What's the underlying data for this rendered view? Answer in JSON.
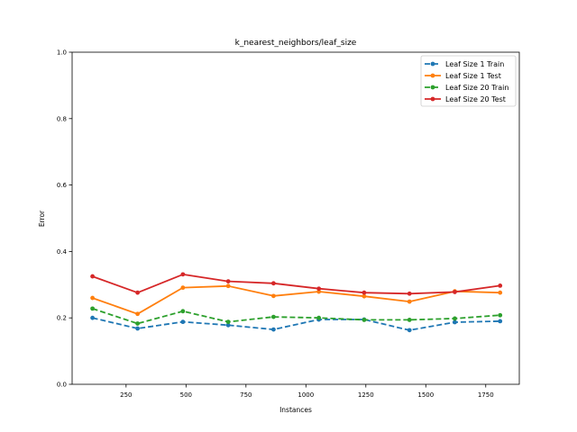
{
  "chart_data": {
    "type": "line",
    "title": "k_nearest_neighbors/leaf_size",
    "xlabel": "Instances",
    "ylabel": "Error",
    "xlim": [
      25,
      1890
    ],
    "ylim": [
      0.0,
      1.0
    ],
    "xticks": [
      250,
      500,
      750,
      1000,
      1250,
      1500,
      1750
    ],
    "yticks": [
      0.0,
      0.2,
      0.4,
      0.6,
      0.8,
      1.0
    ],
    "xtick_labels": [
      "250",
      "500",
      "750",
      "1000",
      "1250",
      "1500",
      "1750"
    ],
    "ytick_labels": [
      "0.0",
      "0.2",
      "0.4",
      "0.6",
      "0.8",
      "1.0"
    ],
    "grid": false,
    "legend_position": "upper-right",
    "x": [
      110,
      298,
      487,
      676,
      865,
      1054,
      1243,
      1432,
      1621,
      1810
    ],
    "series": [
      {
        "name": "Leaf Size 1 Train",
        "color": "#1f77b4",
        "dashed": true,
        "values": [
          0.2,
          0.168,
          0.188,
          0.178,
          0.165,
          0.195,
          0.195,
          0.163,
          0.187,
          0.19
        ]
      },
      {
        "name": "Leaf Size 1 Test",
        "color": "#ff7f0e",
        "dashed": false,
        "values": [
          0.26,
          0.212,
          0.291,
          0.296,
          0.266,
          0.279,
          0.265,
          0.249,
          0.28,
          0.276
        ]
      },
      {
        "name": "Leaf Size 20 Train",
        "color": "#2ca02c",
        "dashed": true,
        "values": [
          0.228,
          0.183,
          0.22,
          0.188,
          0.203,
          0.2,
          0.194,
          0.194,
          0.198,
          0.208
        ]
      },
      {
        "name": "Leaf Size 20 Test",
        "color": "#d62728",
        "dashed": false,
        "values": [
          0.325,
          0.276,
          0.331,
          0.31,
          0.304,
          0.288,
          0.276,
          0.273,
          0.278,
          0.297
        ]
      }
    ]
  }
}
